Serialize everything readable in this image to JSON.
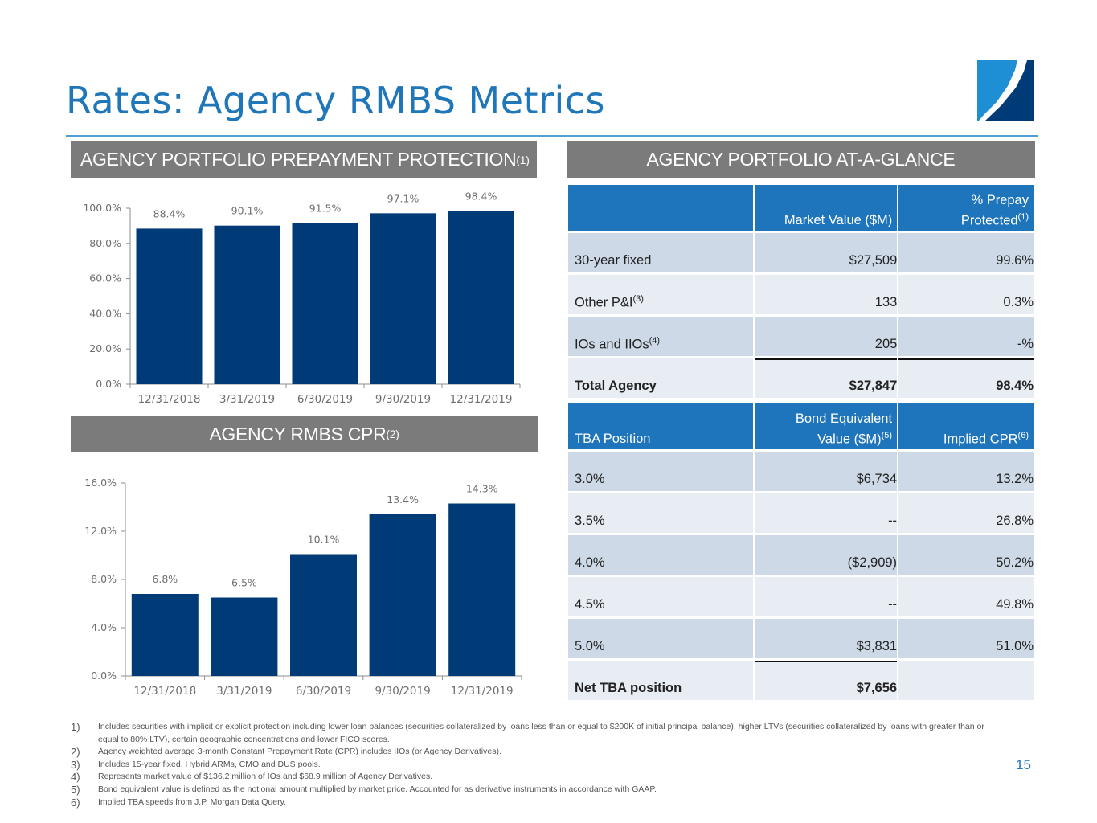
{
  "page": {
    "title": "Rates: Agency RMBS Metrics",
    "page_number": "15",
    "colors": {
      "title_blue": "#1f76b8",
      "bar_navy": "#003a77",
      "header_gray": "#7b7b7b",
      "table_head_blue": "#1e75bb",
      "row_dark": "#cdd9e7",
      "row_light": "#e8ecf3"
    }
  },
  "logo": {
    "icon": "company-logo-icon"
  },
  "sections": {
    "prepayment": {
      "label": "AGENCY PORTFOLIO PREPAYMENT PROTECTION",
      "sup": "(1)"
    },
    "glance": {
      "label": "AGENCY PORTFOLIO AT-A-GLANCE"
    },
    "cpr": {
      "label": "AGENCY RMBS CPR",
      "sup": "(2)"
    }
  },
  "chart_data": [
    {
      "type": "bar",
      "title": "AGENCY PORTFOLIO PREPAYMENT PROTECTION(1)",
      "categories": [
        "12/31/2018",
        "3/31/2019",
        "6/30/2019",
        "9/30/2019",
        "12/31/2019"
      ],
      "values": [
        88.4,
        90.1,
        91.5,
        97.1,
        98.4
      ],
      "value_labels": [
        "88.4%",
        "90.1%",
        "91.5%",
        "97.1%",
        "98.4%"
      ],
      "yticks": [
        "0.0%",
        "20.0%",
        "40.0%",
        "60.0%",
        "80.0%",
        "100.0%"
      ],
      "ylim": [
        0,
        100
      ],
      "xlabel": "",
      "ylabel": "",
      "grid": false
    },
    {
      "type": "bar",
      "title": "AGENCY RMBS CPR(2)",
      "categories": [
        "12/31/2018",
        "3/31/2019",
        "6/30/2019",
        "9/30/2019",
        "12/31/2019"
      ],
      "values": [
        6.8,
        6.5,
        10.1,
        13.4,
        14.3
      ],
      "value_labels": [
        "6.8%",
        "6.5%",
        "10.1%",
        "13.4%",
        "14.3%"
      ],
      "yticks": [
        "0.0%",
        "4.0%",
        "8.0%",
        "12.0%",
        "16.0%"
      ],
      "ylim": [
        0,
        16
      ],
      "xlabel": "",
      "ylabel": "",
      "grid": false
    }
  ],
  "glance_table": {
    "headers": [
      {
        "text": "",
        "sup": ""
      },
      {
        "text": "Market Value ($M)",
        "sup": ""
      },
      {
        "line1": "% Prepay",
        "text": "Protected",
        "sup": "(1)"
      }
    ],
    "rows": [
      {
        "label": "30-year fixed",
        "sup": "",
        "value": "$27,509",
        "pct": "99.6%"
      },
      {
        "label": "Other P&I",
        "sup": "(3)",
        "value": "133",
        "pct": "0.3%"
      },
      {
        "label": "IOs and IIOs",
        "sup": "(4)",
        "value": "205",
        "pct": "-%"
      },
      {
        "label": "Total Agency",
        "sup": "",
        "value": "$27,847",
        "pct": "98.4%"
      }
    ]
  },
  "tba_table": {
    "headers": [
      {
        "text": "TBA Position",
        "sup": ""
      },
      {
        "line1": "Bond Equivalent",
        "text": "Value ($M)",
        "sup": "(5)"
      },
      {
        "text": "Implied CPR",
        "sup": "(6)"
      }
    ],
    "rows": [
      {
        "label": "3.0%",
        "value": "$6,734",
        "cpr": "13.2%"
      },
      {
        "label": "3.5%",
        "value": "--",
        "cpr": "26.8%"
      },
      {
        "label": "4.0%",
        "value": "($2,909)",
        "cpr": "50.2%"
      },
      {
        "label": "4.5%",
        "value": "--",
        "cpr": "49.8%"
      },
      {
        "label": "5.0%",
        "value": "$3,831",
        "cpr": "51.0%"
      },
      {
        "label": "Net TBA position",
        "value": "$7,656",
        "cpr": ""
      }
    ]
  },
  "footnotes": [
    {
      "n": "1)",
      "text": "Includes securities with implicit or explicit protection including lower loan balances (securities collateralized by loans less than or equal to $200K of initial principal balance), higher LTVs (securities collateralized by loans with greater than or equal to 80% LTV), certain geographic concentrations and lower FICO scores."
    },
    {
      "n": "2)",
      "text": "Agency weighted average 3-month Constant Prepayment Rate (CPR) includes IIOs (or Agency Derivatives)."
    },
    {
      "n": "3)",
      "text": "Includes 15-year fixed, Hybrid ARMs, CMO and DUS pools."
    },
    {
      "n": "4)",
      "text": "Represents market value of $136.2 million of IOs and $68.9 million of Agency Derivatives."
    },
    {
      "n": "5)",
      "text": "Bond equivalent value is defined as the notional amount multiplied by market price. Accounted for as derivative instruments in accordance with GAAP."
    },
    {
      "n": "6)",
      "text": "Implied TBA speeds from J.P. Morgan Data Query."
    }
  ]
}
